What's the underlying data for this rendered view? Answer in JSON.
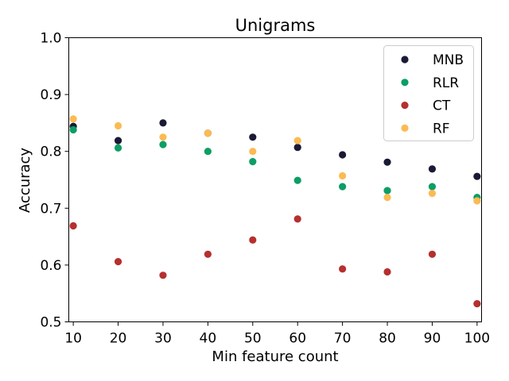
{
  "chart_data": {
    "type": "scatter",
    "title": "Unigrams",
    "xlabel": "Min feature count",
    "ylabel": "Accuracy",
    "xlim": [
      9,
      101
    ],
    "ylim": [
      0.5,
      1.0
    ],
    "grid": false,
    "legend_position": "top-right",
    "x_ticks": [
      10,
      20,
      30,
      40,
      50,
      60,
      70,
      80,
      90,
      100
    ],
    "x_tick_labels": [
      "10",
      "20",
      "30",
      "40",
      "50",
      "60",
      "70",
      "80",
      "90",
      "100"
    ],
    "y_ticks": [
      0.5,
      0.6,
      0.7,
      0.8,
      0.9,
      1.0
    ],
    "y_tick_labels": [
      "0.5",
      "0.6",
      "0.7",
      "0.8",
      "0.9",
      "1.0"
    ],
    "x": [
      10,
      20,
      30,
      40,
      50,
      60,
      70,
      80,
      90,
      100
    ],
    "series": [
      {
        "name": "MNB",
        "color": "#1a1a35",
        "values": [
          0.844,
          0.819,
          0.85,
          0.832,
          0.825,
          0.807,
          0.794,
          0.781,
          0.769,
          0.756
        ]
      },
      {
        "name": "RLR",
        "color": "#0c9e65",
        "values": [
          0.838,
          0.806,
          0.812,
          0.8,
          0.782,
          0.749,
          0.738,
          0.731,
          0.738,
          0.719
        ]
      },
      {
        "name": "CT",
        "color": "#b5302f",
        "values": [
          0.669,
          0.606,
          0.582,
          0.619,
          0.644,
          0.681,
          0.593,
          0.588,
          0.619,
          0.532
        ]
      },
      {
        "name": "RF",
        "color": "#fbbb53",
        "values": [
          0.857,
          0.845,
          0.825,
          0.832,
          0.8,
          0.819,
          0.757,
          0.719,
          0.726,
          0.713
        ]
      }
    ]
  }
}
